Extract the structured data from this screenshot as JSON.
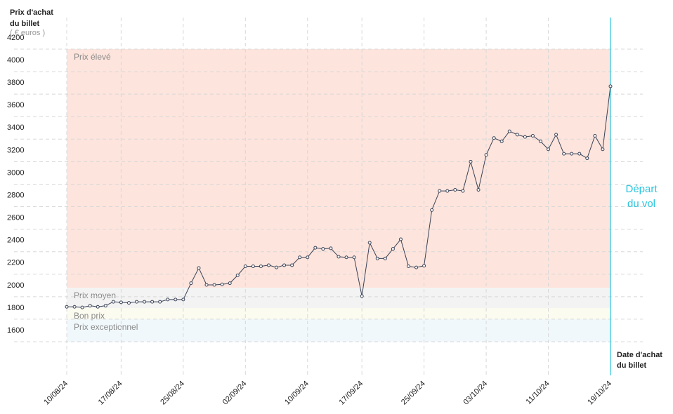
{
  "chart_data": {
    "type": "line",
    "y_title": [
      "Prix d'achat",
      "du billet"
    ],
    "y_unit": "( € euros )",
    "x_title": [
      "Date d'achat",
      "du billet"
    ],
    "departure_label": [
      "Départ",
      "du vol"
    ],
    "departure_color": "#29c4de",
    "categories": [
      "10/08/24",
      null,
      null,
      null,
      null,
      null,
      null,
      "17/08/24",
      null,
      null,
      null,
      null,
      null,
      null,
      null,
      "25/08/24",
      null,
      null,
      null,
      null,
      null,
      null,
      null,
      "02/09/24",
      null,
      null,
      null,
      null,
      null,
      null,
      null,
      "10/09/24",
      null,
      null,
      null,
      null,
      null,
      null,
      "17/09/24",
      null,
      null,
      null,
      null,
      null,
      null,
      null,
      "25/09/24",
      null,
      null,
      null,
      null,
      null,
      null,
      null,
      "03/10/24",
      null,
      null,
      null,
      null,
      null,
      null,
      null,
      "11/10/24",
      null,
      null,
      null,
      null,
      null,
      null,
      null,
      "19/10/24"
    ],
    "series": [
      {
        "name": "Prix",
        "color": "#3a4256",
        "values": [
          1910,
          1910,
          1905,
          1920,
          1910,
          1920,
          1955,
          1950,
          1945,
          1955,
          1955,
          1955,
          1955,
          1975,
          1975,
          1975,
          2120,
          2255,
          2105,
          2105,
          2110,
          2120,
          2190,
          2270,
          2270,
          2270,
          2280,
          2260,
          2280,
          2280,
          2350,
          2350,
          2435,
          2425,
          2430,
          2355,
          2350,
          2350,
          2005,
          2480,
          2340,
          2340,
          2425,
          2510,
          2270,
          2260,
          2275,
          2770,
          2940,
          2940,
          2950,
          2940,
          3200,
          2950,
          3260,
          3410,
          3380,
          3470,
          3440,
          3420,
          3430,
          3380,
          3310,
          3440,
          3270,
          3270,
          3270,
          3230,
          3430,
          3310,
          3870
        ]
      }
    ],
    "bands": [
      {
        "label": "Prix élevé",
        "from": 2080,
        "to": 4200,
        "color": "#fde4dc"
      },
      {
        "label": "Prix moyen",
        "from": 1900,
        "to": 2080,
        "color": "#f3f3f3"
      },
      {
        "label": "Bon prix",
        "from": 1800,
        "to": 1900,
        "color": "#fbfbef"
      },
      {
        "label": "Prix exceptionnel",
        "from": 1600,
        "to": 1800,
        "color": "#f1f8fb"
      }
    ],
    "ylim": [
      1600,
      4200
    ],
    "yticks": [
      1600,
      1800,
      2000,
      2200,
      2400,
      2600,
      2800,
      3000,
      3200,
      3400,
      3600,
      3800,
      4000,
      4200
    ],
    "grid": true
  }
}
